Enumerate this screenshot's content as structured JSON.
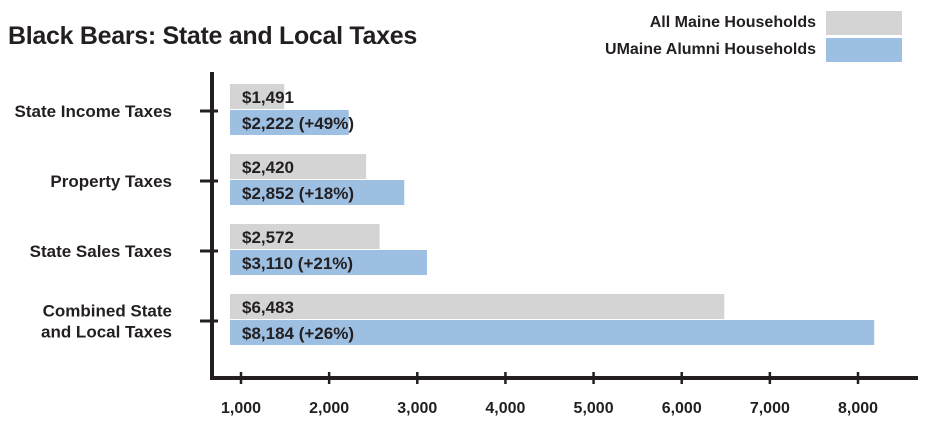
{
  "title": "Black Bears: State and Local Taxes",
  "legend": {
    "all": {
      "label": "All Maine Households",
      "color": "#d4d4d4"
    },
    "alumni": {
      "label": "UMaine Alumni Households",
      "color": "#9dbfe2"
    }
  },
  "chart_data": {
    "type": "bar",
    "orientation": "horizontal",
    "title": "Black Bears: State and Local Taxes",
    "categories": [
      [
        "State Income Taxes"
      ],
      [
        "Property Taxes"
      ],
      [
        "State Sales Taxes"
      ],
      [
        "Combined State",
        "and Local Taxes"
      ]
    ],
    "series": [
      {
        "name": "All Maine Households",
        "color": "#d4d4d4",
        "values": [
          1491,
          2420,
          2572,
          6483
        ],
        "labels": [
          "$1,491",
          "$2,420",
          "$2,572",
          "$6,483"
        ]
      },
      {
        "name": "UMaine Alumni Households",
        "color": "#9dbfe2",
        "values": [
          2222,
          2852,
          3110,
          8184
        ],
        "labels": [
          "$2,222 (+49%)",
          "$2,852 (+18%)",
          "$3,110 (+21%)",
          "$8,184 (+26%)"
        ]
      }
    ],
    "xticks": [
      1000,
      2000,
      3000,
      4000,
      5000,
      6000,
      7000,
      8000
    ],
    "xtick_labels": [
      "1,000",
      "2,000",
      "3,000",
      "4,000",
      "5,000",
      "6,000",
      "7,000",
      "8,000"
    ],
    "xlim": [
      880,
      8500
    ],
    "xlabel": "",
    "ylabel": "",
    "legend_position": "top-right",
    "grid": false
  }
}
